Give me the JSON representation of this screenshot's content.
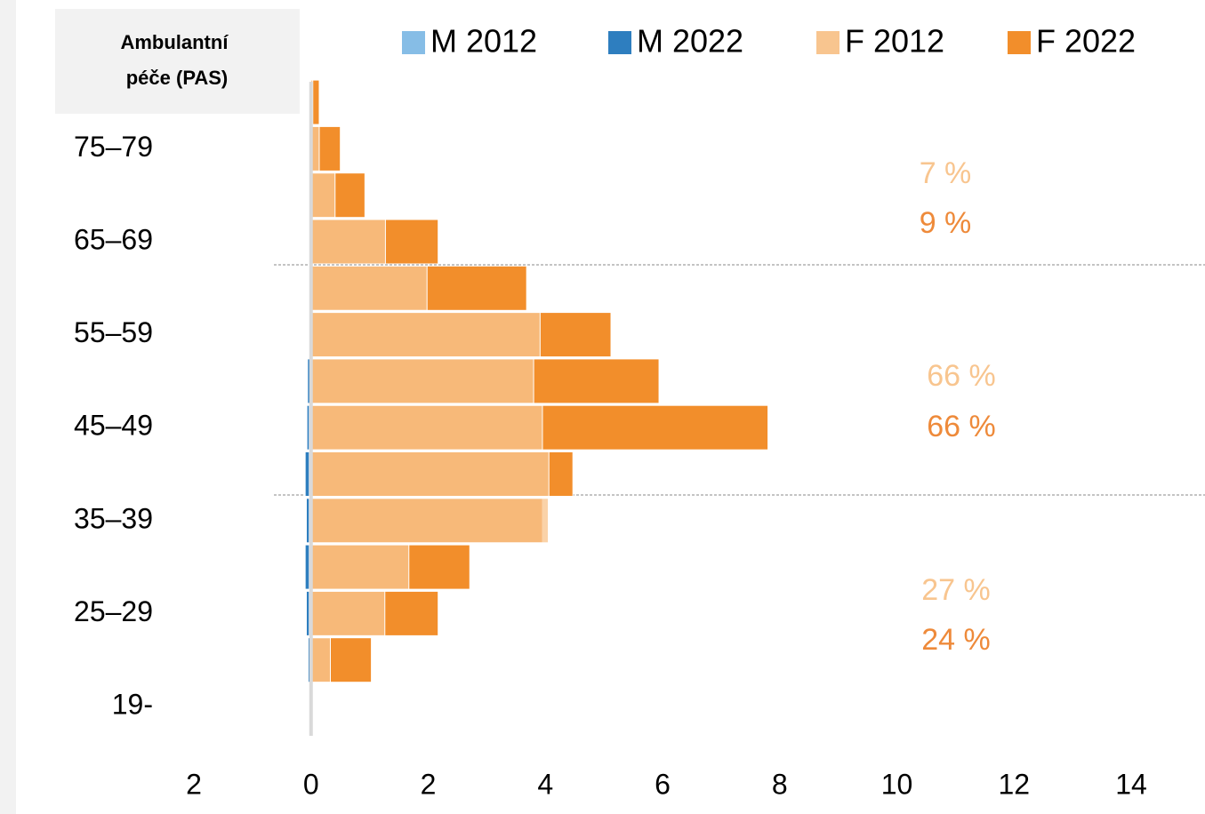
{
  "chart_data": {
    "type": "bar",
    "orientation": "horizontal",
    "title": "Ambulantní péče (PAS)",
    "categories": [
      "19-",
      null,
      "25–29",
      null,
      "35–39",
      null,
      "45–49",
      null,
      "55–59",
      null,
      "65–69",
      null,
      "75–79",
      null
    ],
    "series": [
      {
        "name": "M 2012",
        "color": "#86bde6",
        "values": [
          0,
          -0.02,
          -0.03,
          -0.03,
          -0.03,
          -0.03,
          -0.03,
          -0.02,
          -0.02,
          -0.01,
          0,
          0,
          0,
          0
        ]
      },
      {
        "name": "M 2022",
        "color": "#2e7ebf",
        "values": [
          0,
          -0.05,
          -0.08,
          -0.1,
          -0.08,
          -0.1,
          -0.07,
          -0.06,
          -0.02,
          -0.01,
          0,
          0,
          0,
          0
        ]
      },
      {
        "name": "F 2012",
        "color": "#f8c58f",
        "values": [
          0,
          0.33,
          1.26,
          1.67,
          4.05,
          4.06,
          3.95,
          3.8,
          3.91,
          1.98,
          1.27,
          0.41,
          0.14,
          0.03
        ]
      },
      {
        "name": "F 2022",
        "color": "#f28e2b",
        "values": [
          0,
          1.03,
          2.17,
          2.71,
          3.95,
          4.47,
          7.8,
          5.94,
          5.12,
          3.68,
          2.17,
          0.92,
          0.5,
          0.14
        ]
      }
    ],
    "xlim": [
      -2,
      14
    ],
    "xticks": [
      {
        "value": -2,
        "label": "2"
      },
      0,
      2,
      4,
      6,
      8,
      10,
      12,
      14
    ],
    "annotations": [
      {
        "text": "7 %",
        "color": "#f8c58f"
      },
      {
        "text": "9 %",
        "color": "#ee8a3a"
      },
      {
        "text": "66 %",
        "color": "#f8c58f"
      },
      {
        "text": "66 %",
        "color": "#ee8a3a"
      },
      {
        "text": "27 %",
        "color": "#f8c58f"
      },
      {
        "text": "24 %",
        "color": "#ee8a3a"
      }
    ]
  }
}
